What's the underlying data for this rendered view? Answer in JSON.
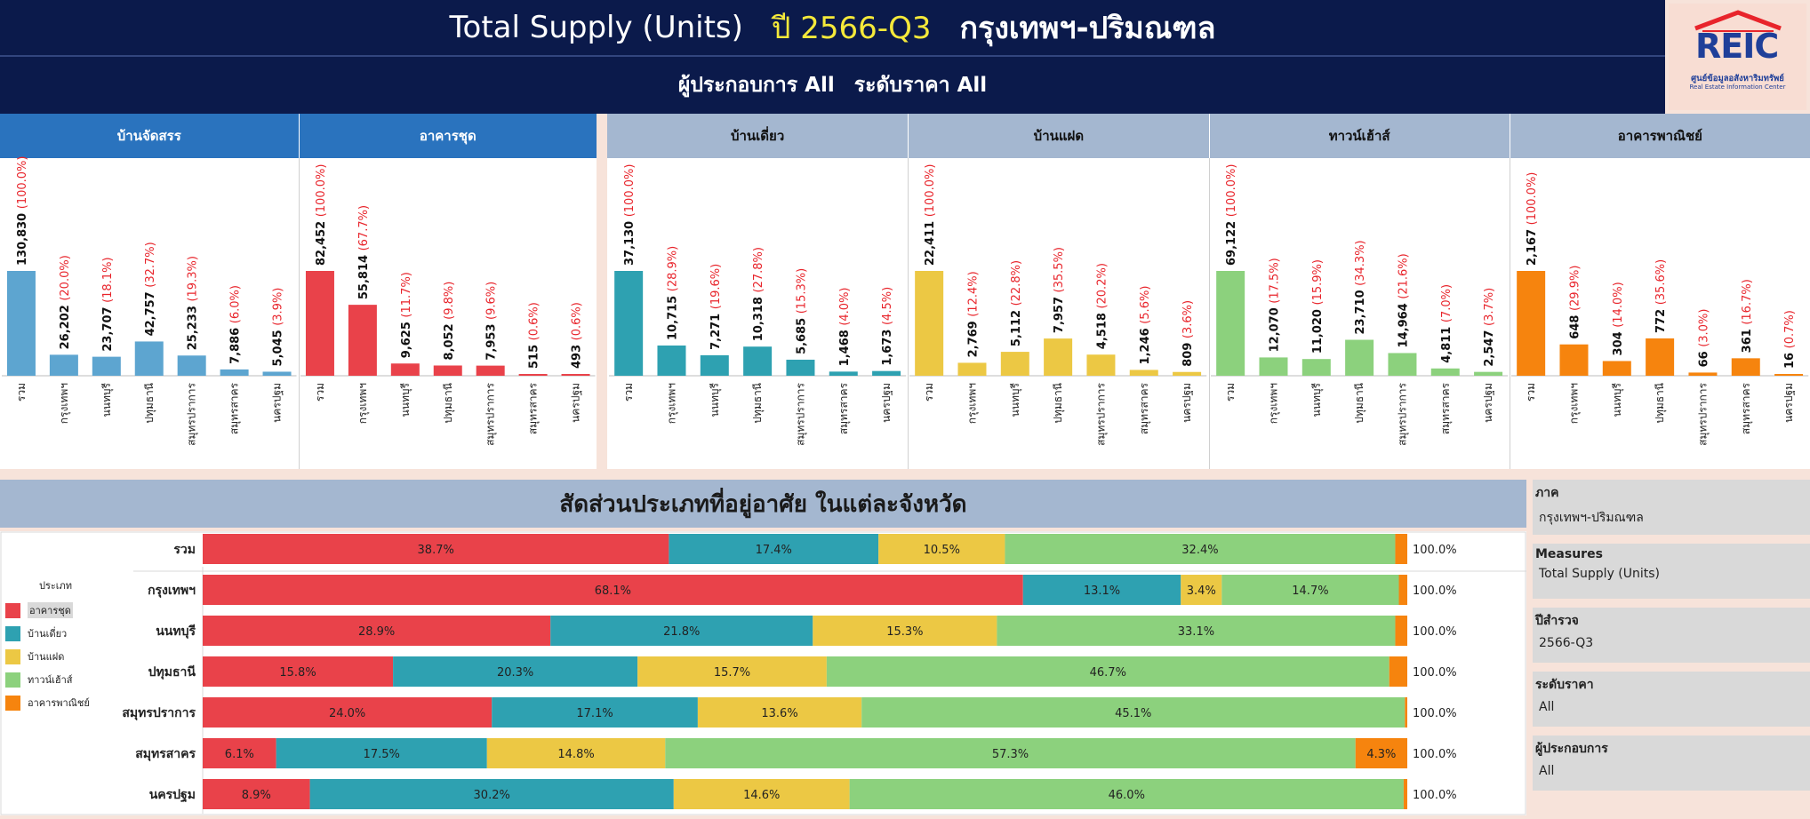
{
  "header": {
    "title": "Total Supply (Units)",
    "year_label": "ปี 2566-Q3",
    "region": "กรุงเทพฯ-ปริมณฑล",
    "developer_label": "ผู้ประกอบการ All",
    "price_label": "ระดับราคา All"
  },
  "logo": {
    "text": "REIC",
    "line1": "ศูนย์ข้อมูลอสังหาริมทรัพย์",
    "line2": "Real Estate Information Center"
  },
  "colors": {
    "condo": "#e9424a",
    "detached": "#2ea1b1",
    "semidetached": "#ecc844",
    "townhouse": "#8cd17d",
    "commercial": "#f6840e",
    "housing": "#5da5d0",
    "label_red": "#e8242b",
    "header_dark": "#0b1a4b",
    "head_blue": "#2a73be",
    "head_grey": "#a4b7d0"
  },
  "mid_title": "สัดส่วนประเภทที่อยู่อาศัย ในแต่ละจังหวัด",
  "legend": {
    "title": "ประเภท",
    "items": [
      "อาคารชุด",
      "บ้านเดี่ยว",
      "บ้านแฝด",
      "ทาวน์เฮ้าส์",
      "อาคารพาณิชย์"
    ]
  },
  "filters": [
    {
      "label": "ภาค",
      "value": "กรุงเทพฯ-ปริมณฑล"
    },
    {
      "label": "Measures",
      "value": "Total Supply (Units)"
    },
    {
      "label": "ปีสำรวจ",
      "value": "2566-Q3"
    },
    {
      "label": "ระดับราคา",
      "value": "All"
    },
    {
      "label": "ผู้ประกอบการ",
      "value": "All"
    }
  ],
  "chart_data": [
    {
      "type": "bar",
      "title": "บ้านจัดสรร",
      "color": "#5da5d0",
      "categories": [
        "รวม",
        "กรุงเทพฯ",
        "นนทบุรี",
        "ปทุมธานี",
        "สมุทรปราการ",
        "สมุทรสาคร",
        "นครปฐม"
      ],
      "values": [
        130830,
        26202,
        23707,
        42757,
        25233,
        7886,
        5045
      ],
      "value_labels": [
        "130,830",
        "26,202",
        "23,707",
        "42,757",
        "25,233",
        "7,886",
        "5,045"
      ],
      "pct_labels": [
        "(100.0%)",
        "(20.0%)",
        "(18.1%)",
        "(32.7%)",
        "(19.3%)",
        "(6.0%)",
        "(3.9%)"
      ]
    },
    {
      "type": "bar",
      "title": "อาคารชุด",
      "color": "#e9424a",
      "categories": [
        "รวม",
        "กรุงเทพฯ",
        "นนทบุรี",
        "ปทุมธานี",
        "สมุทรปราการ",
        "สมุทรสาคร",
        "นครปฐม"
      ],
      "values": [
        82452,
        55814,
        9625,
        8052,
        7953,
        515,
        493
      ],
      "value_labels": [
        "82,452",
        "55,814",
        "9,625",
        "8,052",
        "7,953",
        "515",
        "493"
      ],
      "pct_labels": [
        "(100.0%)",
        "(67.7%)",
        "(11.7%)",
        "(9.8%)",
        "(9.6%)",
        "(0.6%)",
        "(0.6%)"
      ]
    },
    {
      "type": "bar",
      "title": "บ้านเดี่ยว",
      "color": "#2ea1b1",
      "categories": [
        "รวม",
        "กรุงเทพฯ",
        "นนทบุรี",
        "ปทุมธานี",
        "สมุทรปราการ",
        "สมุทรสาคร",
        "นครปฐม"
      ],
      "values": [
        37130,
        10715,
        7271,
        10318,
        5685,
        1468,
        1673
      ],
      "value_labels": [
        "37,130",
        "10,715",
        "7,271",
        "10,318",
        "5,685",
        "1,468",
        "1,673"
      ],
      "pct_labels": [
        "(100.0%)",
        "(28.9%)",
        "(19.6%)",
        "(27.8%)",
        "(15.3%)",
        "(4.0%)",
        "(4.5%)"
      ]
    },
    {
      "type": "bar",
      "title": "บ้านแฝด",
      "color": "#ecc844",
      "categories": [
        "รวม",
        "กรุงเทพฯ",
        "นนทบุรี",
        "ปทุมธานี",
        "สมุทรปราการ",
        "สมุทรสาคร",
        "นครปฐม"
      ],
      "values": [
        22411,
        2769,
        5112,
        7957,
        4518,
        1246,
        809
      ],
      "value_labels": [
        "22,411",
        "2,769",
        "5,112",
        "7,957",
        "4,518",
        "1,246",
        "809"
      ],
      "pct_labels": [
        "(100.0%)",
        "(12.4%)",
        "(22.8%)",
        "(35.5%)",
        "(20.2%)",
        "(5.6%)",
        "(3.6%)"
      ]
    },
    {
      "type": "bar",
      "title": "ทาวน์เฮ้าส์",
      "color": "#8cd17d",
      "categories": [
        "รวม",
        "กรุงเทพฯ",
        "นนทบุรี",
        "ปทุมธานี",
        "สมุทรปราการ",
        "สมุทรสาคร",
        "นครปฐม"
      ],
      "values": [
        69122,
        12070,
        11020,
        23710,
        14964,
        4811,
        2547
      ],
      "value_labels": [
        "69,122",
        "12,070",
        "11,020",
        "23,710",
        "14,964",
        "4,811",
        "2,547"
      ],
      "pct_labels": [
        "(100.0%)",
        "(17.5%)",
        "(15.9%)",
        "(34.3%)",
        "(21.6%)",
        "(7.0%)",
        "(3.7%)"
      ]
    },
    {
      "type": "bar",
      "title": "อาคารพาณิชย์",
      "color": "#f6840e",
      "categories": [
        "รวม",
        "กรุงเทพฯ",
        "นนทบุรี",
        "ปทุมธานี",
        "สมุทรปราการ",
        "สมุทรสาคร",
        "นครปฐม"
      ],
      "values": [
        2167,
        648,
        304,
        772,
        66,
        361,
        16
      ],
      "value_labels": [
        "2,167",
        "648",
        "304",
        "772",
        "66",
        "361",
        "16"
      ],
      "pct_labels": [
        "(100.0%)",
        "(29.9%)",
        "(14.0%)",
        "(35.6%)",
        "(3.0%)",
        "(16.7%)",
        "(0.7%)"
      ]
    },
    {
      "type": "bar",
      "title": "สัดส่วนประเภทที่อยู่อาศัย ในแต่ละจังหวัด",
      "orientation": "horizontal-stacked",
      "categories": [
        "รวม",
        "กรุงเทพฯ",
        "นนทบุรี",
        "ปทุมธานี",
        "สมุทรปราการ",
        "สมุทรสาคร",
        "นครปฐม"
      ],
      "series": [
        {
          "name": "อาคารชุด",
          "values": [
            38.7,
            68.1,
            28.9,
            15.8,
            24.0,
            6.1,
            8.9
          ],
          "labels": [
            "38.7%",
            "68.1%",
            "28.9%",
            "15.8%",
            "24.0%",
            "6.1%",
            "8.9%"
          ]
        },
        {
          "name": "บ้านเดี่ยว",
          "values": [
            17.4,
            13.1,
            21.8,
            20.3,
            17.1,
            17.5,
            30.2
          ],
          "labels": [
            "17.4%",
            "13.1%",
            "21.8%",
            "20.3%",
            "17.1%",
            "17.5%",
            "30.2%"
          ]
        },
        {
          "name": "บ้านแฝด",
          "values": [
            10.5,
            3.4,
            15.3,
            15.7,
            13.6,
            14.8,
            14.6
          ],
          "labels": [
            "10.5%",
            "3.4%",
            "15.3%",
            "15.7%",
            "13.6%",
            "14.8%",
            "14.6%"
          ]
        },
        {
          "name": "ทาวน์เฮ้าส์",
          "values": [
            32.4,
            14.7,
            33.1,
            46.7,
            45.1,
            57.3,
            46.0
          ],
          "labels": [
            "32.4%",
            "14.7%",
            "33.1%",
            "46.7%",
            "45.1%",
            "57.3%",
            "46.0%"
          ]
        },
        {
          "name": "อาคารพาณิชย์",
          "values": [
            1.0,
            0.7,
            1.0,
            1.5,
            0.2,
            4.3,
            0.3
          ],
          "labels": [
            "",
            "",
            "",
            "",
            "",
            "4.3%",
            ""
          ]
        }
      ],
      "totals": [
        "100.0%",
        "100.0%",
        "100.0%",
        "100.0%",
        "100.0%",
        "100.0%",
        "100.0%"
      ]
    }
  ]
}
